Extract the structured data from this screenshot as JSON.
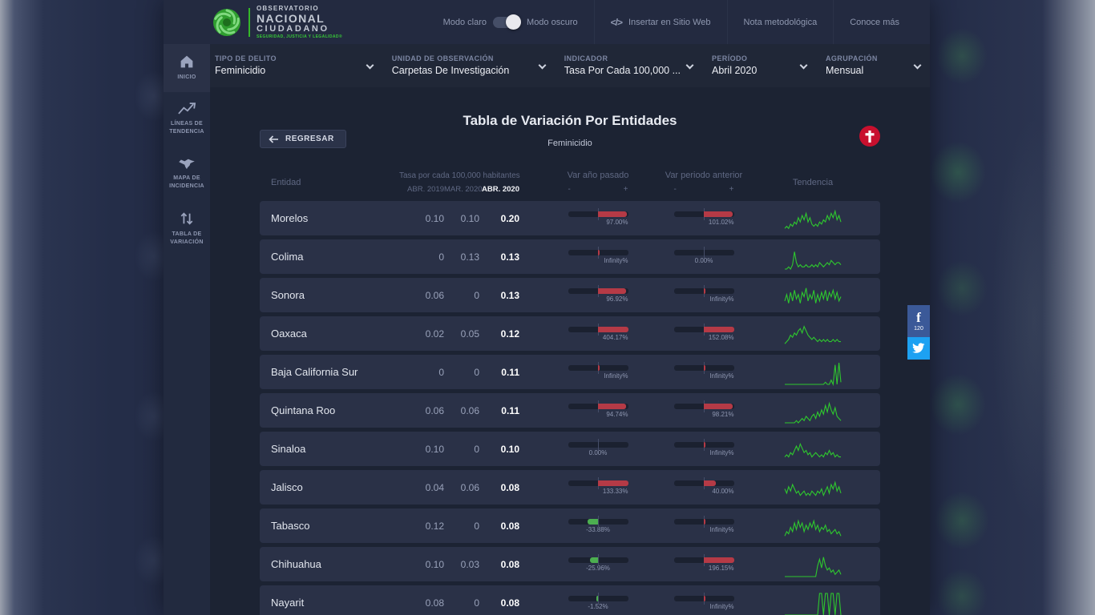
{
  "brand": {
    "line1": "OBSERVATORIO",
    "line2": "NACIONAL",
    "line3": "CIUDADANO",
    "tagline": "SEGURIDAD, JUSTICIA Y LEGALIDAD®"
  },
  "topbar": {
    "mode_light": "Modo claro",
    "mode_dark": "Modo oscuro",
    "mode_state": "dark",
    "embed_label": "Insertar en Sitio Web",
    "note_label": "Nota metodológica",
    "more_label": "Conoce más"
  },
  "icons": {
    "code": "</>",
    "facebook": "f"
  },
  "filters": [
    {
      "label": "TIPO DE DELITO",
      "value": "Feminicidio"
    },
    {
      "label": "UNIDAD DE OBSERVACIÓN",
      "value": "Carpetas De Investigación"
    },
    {
      "label": "INDICADOR",
      "value": "Tasa Por Cada 100,000 ..."
    },
    {
      "label": "PERÍODO",
      "value": "Abril 2020"
    },
    {
      "label": "AGRUPACIÓN",
      "value": "Mensual"
    }
  ],
  "sidebar": [
    {
      "label": "INICIO",
      "icon": "home-icon",
      "active": true
    },
    {
      "label": "LÍNEAS DE TENDENCIA",
      "icon": "trend-lines-icon",
      "active": false
    },
    {
      "label": "MAPA DE INCIDENCIA",
      "icon": "mexico-map-icon",
      "active": false
    },
    {
      "label": "TABLA DE VARIACIÓN",
      "icon": "sort-arrows-icon",
      "active": false
    }
  ],
  "page": {
    "title": "Tabla de Variación Por Entidades",
    "subtitle": "Feminicidio",
    "back_label": "REGRESAR"
  },
  "table": {
    "col_entity": "Entidad",
    "col_rate_group": "Tasa por cada 100,000 habitantes",
    "rate_periods": [
      "ABR. 2019",
      "MAR. 2020",
      "ABR. 2020"
    ],
    "col_var_year": "Var año pasado",
    "col_var_prev": "Var periodo anterior",
    "minus": "-",
    "plus": "+",
    "col_trend": "Tendencia",
    "rows": [
      {
        "entity": "Morelos",
        "rates": [
          "0.10",
          "0.10",
          "0.20"
        ],
        "var_year": {
          "label": "97.00%",
          "fill": 0.95
        },
        "var_prev": {
          "label": "101.02%",
          "fill": 0.95
        },
        "trend": [
          1,
          2,
          1,
          3,
          2,
          4,
          3,
          6,
          4,
          7,
          5,
          8,
          4,
          6,
          3,
          2,
          3,
          2,
          4,
          3,
          5,
          4,
          7,
          5,
          8,
          6,
          9,
          5,
          7,
          4
        ]
      },
      {
        "entity": "Colima",
        "rates": [
          "0",
          "0.13",
          "0.13"
        ],
        "var_year": {
          "label": "Infinity%",
          "fill": 0.05
        },
        "var_prev": {
          "label": "0.00%",
          "fill": 0
        },
        "trend": [
          0,
          0,
          1,
          0,
          2,
          8,
          3,
          1,
          2,
          1,
          1,
          2,
          1,
          1,
          2,
          1,
          2,
          1,
          3,
          2,
          1,
          2,
          3,
          2,
          4,
          3,
          2,
          3,
          3,
          2
        ]
      },
      {
        "entity": "Sonora",
        "rates": [
          "0.06",
          "0",
          "0.13"
        ],
        "var_year": {
          "label": "96.92%",
          "fill": 0.93
        },
        "var_prev": {
          "label": "Infinity%",
          "fill": 0.05
        },
        "trend": [
          3,
          6,
          2,
          7,
          3,
          8,
          4,
          6,
          2,
          7,
          5,
          9,
          3,
          6,
          4,
          8,
          2,
          6,
          3,
          7,
          4,
          8,
          3,
          7,
          5,
          8,
          4,
          7,
          3,
          5
        ]
      },
      {
        "entity": "Oaxaca",
        "rates": [
          "0.02",
          "0.05",
          "0.12"
        ],
        "var_year": {
          "label": "404.17%",
          "fill": 1
        },
        "var_prev": {
          "label": "152.08%",
          "fill": 1
        },
        "trend": [
          1,
          2,
          3,
          5,
          4,
          6,
          5,
          7,
          8,
          6,
          9,
          7,
          5,
          4,
          3,
          4,
          3,
          2,
          3,
          2,
          3,
          2,
          3,
          2,
          2,
          3,
          2,
          3,
          2,
          2
        ]
      },
      {
        "entity": "Baja California Sur",
        "rates": [
          "0",
          "0",
          "0.11"
        ],
        "var_year": {
          "label": "Infinity%",
          "fill": 0.05
        },
        "var_prev": {
          "label": "Infinity%",
          "fill": 0.05
        },
        "trend": [
          0,
          0,
          0,
          0,
          0,
          0,
          0,
          0,
          0,
          0,
          0,
          0,
          0,
          0,
          0,
          0,
          0,
          0,
          0,
          0,
          0,
          1,
          0,
          0,
          2,
          0,
          9,
          0,
          10,
          1
        ]
      },
      {
        "entity": "Quintana Roo",
        "rates": [
          "0.06",
          "0.06",
          "0.11"
        ],
        "var_year": {
          "label": "94.74%",
          "fill": 0.93
        },
        "var_prev": {
          "label": "98.21%",
          "fill": 0.95
        },
        "trend": [
          0,
          0,
          0,
          0,
          0,
          0,
          1,
          0,
          1,
          2,
          1,
          3,
          2,
          1,
          3,
          4,
          2,
          5,
          3,
          6,
          4,
          8,
          5,
          9,
          6,
          4,
          7,
          3,
          2,
          1
        ]
      },
      {
        "entity": "Sinaloa",
        "rates": [
          "0.10",
          "0",
          "0.10"
        ],
        "var_year": {
          "label": "0.00%",
          "fill": 0
        },
        "var_prev": {
          "label": "Infinity%",
          "fill": 0.05
        },
        "trend": [
          2,
          3,
          2,
          4,
          3,
          5,
          7,
          5,
          8,
          6,
          4,
          5,
          3,
          4,
          2,
          3,
          4,
          3,
          2,
          3,
          2,
          4,
          3,
          5,
          3,
          4,
          2,
          3,
          2,
          2
        ]
      },
      {
        "entity": "Jalisco",
        "rates": [
          "0.04",
          "0.06",
          "0.08"
        ],
        "var_year": {
          "label": "133.33%",
          "fill": 1
        },
        "var_prev": {
          "label": "40.00%",
          "fill": 0.4
        },
        "trend": [
          5,
          3,
          6,
          4,
          7,
          5,
          3,
          4,
          2,
          3,
          4,
          2,
          3,
          2,
          4,
          3,
          2,
          4,
          3,
          5,
          2,
          4,
          6,
          3,
          7,
          5,
          8,
          4,
          6,
          3
        ]
      },
      {
        "entity": "Tabasco",
        "rates": [
          "0.12",
          "0",
          "0.08"
        ],
        "var_year": {
          "label": "-33.88%",
          "fill": -0.34
        },
        "var_prev": {
          "label": "Infinity%",
          "fill": 0.05
        },
        "trend": [
          1,
          3,
          2,
          5,
          3,
          7,
          4,
          8,
          5,
          7,
          3,
          6,
          4,
          7,
          5,
          8,
          4,
          6,
          3,
          5,
          4,
          6,
          3,
          4,
          2,
          3,
          4,
          2,
          3,
          1
        ]
      },
      {
        "entity": "Chihuahua",
        "rates": [
          "0.10",
          "0.03",
          "0.08"
        ],
        "var_year": {
          "label": "-25.96%",
          "fill": -0.26
        },
        "var_prev": {
          "label": "196.15%",
          "fill": 1
        },
        "trend": [
          0,
          0,
          0,
          0,
          0,
          0,
          0,
          0,
          0,
          0,
          0,
          0,
          0,
          0,
          0,
          0,
          0,
          5,
          8,
          4,
          9,
          5,
          3,
          4,
          2,
          3,
          1,
          2,
          3,
          1
        ]
      },
      {
        "entity": "Nayarit",
        "rates": [
          "0.08",
          "0",
          "0.08"
        ],
        "var_year": {
          "label": "-1.52%",
          "fill": -0.04
        },
        "var_prev": {
          "label": "Infinity%",
          "fill": 0.05
        },
        "trend": [
          0,
          0,
          0,
          0,
          0,
          0,
          0,
          0,
          0,
          0,
          0,
          0,
          0,
          0,
          0,
          0,
          0,
          0,
          10,
          10,
          0,
          10,
          10,
          0,
          10,
          10,
          0,
          10,
          10,
          0
        ]
      }
    ]
  },
  "share": {
    "facebook_count": "120"
  },
  "colors": {
    "accent_green": "#35b729",
    "negative_red": "#b53a46",
    "positive_green": "#4caf50",
    "spark_green": "#2ec82e",
    "badge_red": "#c8102e",
    "facebook_blue": "#3b5998",
    "twitter_blue": "#1da1f2"
  }
}
